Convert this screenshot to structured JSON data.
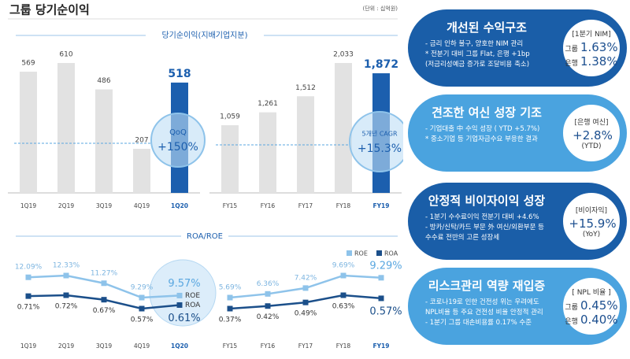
{
  "header": {
    "title": "그룹 당기순이익",
    "unit": "(단위 : 십억원)"
  },
  "chart_data": [
    {
      "type": "bar",
      "title": "당기순이익(지배기업지분)",
      "categories": [
        "1Q19",
        "2Q19",
        "3Q19",
        "4Q19",
        "1Q20"
      ],
      "values": [
        569,
        610,
        486,
        207,
        518
      ],
      "color": "#e2e2e2",
      "highlight_color": "#1c5fae",
      "annotation": {
        "label": "QoQ",
        "value": "+150%"
      }
    },
    {
      "type": "bar",
      "categories": [
        "FY15",
        "FY16",
        "FY17",
        "FY18",
        "FY19"
      ],
      "values": [
        1059,
        1261,
        1512,
        2033,
        1872
      ],
      "value_labels": [
        "1,059",
        "1,261",
        "1,512",
        "2,033",
        "1,872"
      ],
      "color": "#e2e2e2",
      "highlight_color": "#1c5fae",
      "annotation": {
        "label": "5개년 CAGR",
        "value": "+15.3%"
      }
    },
    {
      "type": "line",
      "title": "ROA/ROE",
      "categories": [
        "1Q19",
        "2Q19",
        "3Q19",
        "4Q19",
        "1Q20"
      ],
      "series": [
        {
          "name": "ROE",
          "color": "#8ec3ea",
          "values": [
            12.09,
            12.33,
            11.27,
            9.29,
            9.57
          ],
          "value_labels": [
            "12.09%",
            "12.33%",
            "11.27%",
            "9.29%",
            "9.57%"
          ]
        },
        {
          "name": "ROA",
          "color": "#1b4f8a",
          "values": [
            0.71,
            0.72,
            0.67,
            0.57,
            0.61
          ],
          "value_labels": [
            "0.71%",
            "0.72%",
            "0.67%",
            "0.57%",
            "0.61%"
          ]
        }
      ]
    },
    {
      "type": "line",
      "categories": [
        "FY15",
        "FY16",
        "FY17",
        "FY18",
        "FY19"
      ],
      "series": [
        {
          "name": "ROE",
          "color": "#8ec3ea",
          "values": [
            5.69,
            6.36,
            7.42,
            9.69,
            9.29
          ],
          "value_labels": [
            "5.69%",
            "6.36%",
            "7.42%",
            "9.69%",
            "9.29%"
          ]
        },
        {
          "name": "ROA",
          "color": "#1b4f8a",
          "values": [
            0.37,
            0.42,
            0.49,
            0.63,
            0.57
          ],
          "value_labels": [
            "0.37%",
            "0.42%",
            "0.49%",
            "0.63%",
            "0.57%"
          ]
        }
      ]
    }
  ],
  "panels": [
    {
      "title": "개선된 수익구조",
      "color": "#1a5ea8",
      "bullets": [
        "- 금리 인하 불구, 양호한 NIM 관리",
        "* 전분기 대비 그룹 Flat, 은행 +1bp",
        "(저금리성예금 증가로 조달비용 축소)"
      ],
      "badge": {
        "heading": "[1분기 NIM]",
        "rows": [
          {
            "label": "그룹",
            "value": "1.63%"
          },
          {
            "label": "은행",
            "value": "1.38%"
          }
        ]
      }
    },
    {
      "title": "견조한 여신 성장 기조",
      "color": "#4aa3df",
      "bullets": [
        "- 기업대출 中 수익 성장 ( YTD +5.7%)",
        "* 중소기업 등 기업자금수요 부응한 결과"
      ],
      "badge": {
        "heading": "[은행 여신]",
        "rows": [
          {
            "value": "+2.8%"
          },
          {
            "label": "(YTD)"
          }
        ]
      }
    },
    {
      "title": "안정적 비이자이익 성장",
      "color": "#1a5ea8",
      "bullets": [
        "- 1분기 수수료이익 전분기 대비 +4.6%",
        "- 방카/신탁/카드 부문 外 여신/외환부문 등",
        "수수료 전반의 고른 성장세"
      ],
      "badge": {
        "heading": "[비이자익]",
        "rows": [
          {
            "value": "+15.9%"
          },
          {
            "label": "(YoY)"
          }
        ]
      }
    },
    {
      "title": "리스크관리 역량 재입증",
      "color": "#4aa3df",
      "bullets": [
        "- 코로나19로 인한 건전성 위는 우려에도",
        "NPL비율 등 주요 건전성 비율 안정적 관리",
        "- 1분기 그룹 대손비용률 0.17% 수준"
      ],
      "badge": {
        "heading": "[ NPL 비율 ]",
        "rows": [
          {
            "label": "그룹",
            "value": "0.45%"
          },
          {
            "label": "은행",
            "value": "0.40%"
          }
        ]
      }
    }
  ]
}
